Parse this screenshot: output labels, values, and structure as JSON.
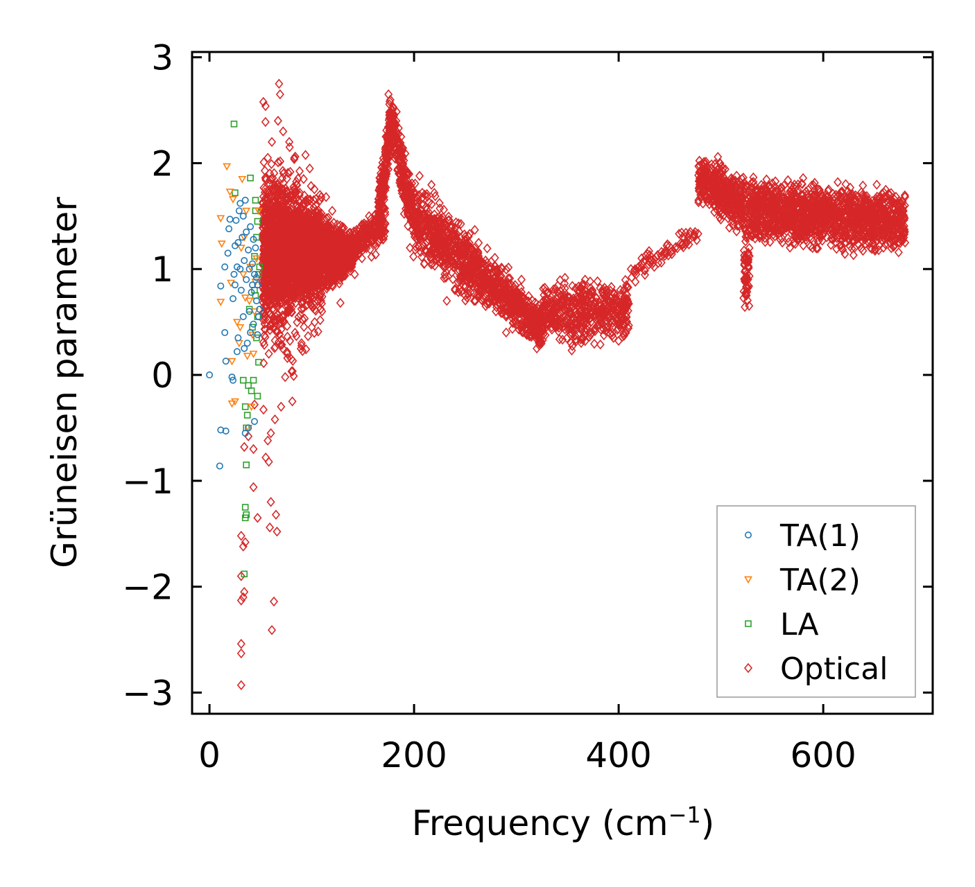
{
  "chart_data": {
    "type": "scatter",
    "title": "",
    "xlabel_main": "Frequency (cm",
    "xlabel_sup": "−1",
    "xlabel_close": ")",
    "ylabel": "Grüneisen parameter",
    "xlim": [
      -17,
      707
    ],
    "ylim": [
      -3.2,
      3.05
    ],
    "xticks": [
      0,
      200,
      400,
      600
    ],
    "xtick_labels": [
      "0",
      "200",
      "400",
      "600"
    ],
    "yticks": [
      -3,
      -2,
      -1,
      0,
      1,
      2,
      3
    ],
    "ytick_labels": [
      "−3",
      "−2",
      "−1",
      "0",
      "1",
      "2",
      "3"
    ],
    "legend_position": "lower-right",
    "series": [
      {
        "name": "TA(1)",
        "marker": "circle",
        "color": "#1f77b4",
        "points": [
          [
            0,
            0
          ],
          [
            10,
            -0.86
          ],
          [
            11,
            -0.52
          ],
          [
            16,
            -0.53
          ],
          [
            16,
            0.13
          ],
          [
            15,
            0.4
          ],
          [
            11,
            0.84
          ],
          [
            15,
            1.02
          ],
          [
            18,
            1.15
          ],
          [
            19,
            1.38
          ],
          [
            20,
            1.47
          ],
          [
            22,
            -0.02
          ],
          [
            23,
            0.72
          ],
          [
            24,
            0.95
          ],
          [
            25,
            1.22
          ],
          [
            26,
            1.46
          ],
          [
            27,
            1.02
          ],
          [
            27,
            0.22
          ],
          [
            28,
            0.35
          ],
          [
            29,
            1.55
          ],
          [
            30,
            1.62
          ],
          [
            31,
            0.8
          ],
          [
            32,
            1.3
          ],
          [
            33,
            0.55
          ],
          [
            34,
            1.08
          ],
          [
            35,
            1.65
          ],
          [
            36,
            0.9
          ],
          [
            37,
            0.3
          ],
          [
            38,
            1.18
          ],
          [
            39,
            0.6
          ],
          [
            40,
            1.4
          ],
          [
            41,
            0.78
          ],
          [
            42,
            1.05
          ],
          [
            43,
            0.48
          ],
          [
            44,
            0.95
          ],
          [
            45,
            1.2
          ],
          [
            46,
            0.7
          ],
          [
            47,
            0.85
          ],
          [
            48,
            0.55
          ],
          [
            49,
            0.62
          ],
          [
            44,
            -0.44
          ],
          [
            38,
            -0.5
          ],
          [
            35,
            -0.55
          ],
          [
            33,
            1.5
          ],
          [
            36,
            1.35
          ],
          [
            39,
            1.0
          ],
          [
            42,
            0.85
          ],
          [
            46,
            0.92
          ],
          [
            30,
            1.0
          ],
          [
            28,
            1.25
          ],
          [
            25,
            0.85
          ],
          [
            23,
            -0.05
          ],
          [
            34,
            0.25
          ],
          [
            40,
            0.4
          ],
          [
            43,
            1.28
          ],
          [
            47,
            0.38
          ]
        ]
      },
      {
        "name": "TA(2)",
        "marker": "triangle-down",
        "color": "#ff7f0e",
        "points": [
          [
            17,
            1.97
          ],
          [
            20,
            1.73
          ],
          [
            23,
            1.66
          ],
          [
            11,
            1.48
          ],
          [
            12,
            1.24
          ],
          [
            11,
            0.69
          ],
          [
            21,
            0.87
          ],
          [
            22,
            0.13
          ],
          [
            22,
            -0.27
          ],
          [
            25,
            -0.25
          ],
          [
            30,
            0.45
          ],
          [
            31,
            1.2
          ],
          [
            32,
            1.85
          ],
          [
            34,
            1.3
          ],
          [
            35,
            0.73
          ],
          [
            37,
            0.18
          ],
          [
            40,
            1.02
          ],
          [
            42,
            0.38
          ],
          [
            45,
            0.88
          ],
          [
            48,
            1.55
          ],
          [
            38,
            -0.5
          ],
          [
            41,
            -0.3
          ],
          [
            44,
            0.6
          ],
          [
            27,
            0.5
          ],
          [
            29,
            0.3
          ],
          [
            33,
            0.95
          ],
          [
            36,
            1.55
          ],
          [
            39,
            0.7
          ],
          [
            46,
            1.1
          ],
          [
            43,
            0.2
          ]
        ]
      },
      {
        "name": "LA",
        "marker": "square",
        "color": "#2ca02c",
        "points": [
          [
            24,
            2.37
          ],
          [
            40,
            1.86
          ],
          [
            25,
            1.72
          ],
          [
            45,
            1.65
          ],
          [
            47,
            1.45
          ],
          [
            46,
            1.3
          ],
          [
            44,
            1.12
          ],
          [
            48,
            0.95
          ],
          [
            45,
            0.75
          ],
          [
            47,
            0.55
          ],
          [
            46,
            0.35
          ],
          [
            48,
            0.12
          ],
          [
            43,
            -0.05
          ],
          [
            38,
            -0.1
          ],
          [
            33,
            -0.05
          ],
          [
            35,
            -0.3
          ],
          [
            37,
            -0.38
          ],
          [
            36,
            -0.5
          ],
          [
            36,
            -0.85
          ],
          [
            35,
            -1.25
          ],
          [
            36,
            -1.32
          ],
          [
            35,
            -1.35
          ],
          [
            34,
            -1.88
          ],
          [
            42,
            0.45
          ],
          [
            39,
            0.62
          ],
          [
            44,
            0.8
          ],
          [
            49,
            1.02
          ],
          [
            41,
            -0.15
          ],
          [
            47,
            -0.2
          ],
          [
            45,
            1.55
          ]
        ]
      },
      {
        "name": "Optical",
        "marker": "diamond",
        "color": "#d62728",
        "points": [
          [
            68,
            2.75
          ],
          [
            69,
            2.65
          ],
          [
            67,
            2.4
          ],
          [
            72,
            2.3
          ],
          [
            78,
            2.2
          ],
          [
            61,
            2.2
          ],
          [
            57,
            2.05
          ],
          [
            98,
            1.95
          ],
          [
            108,
            1.7
          ],
          [
            83,
            2.05
          ],
          [
            114,
            1.68
          ],
          [
            120,
            1.55
          ],
          [
            130,
            1.38
          ],
          [
            140,
            1.2
          ],
          [
            120,
            0.85
          ],
          [
            110,
            0.6
          ],
          [
            100,
            0.45
          ],
          [
            90,
            0.3
          ],
          [
            80,
            0.15
          ],
          [
            74,
            -0.02
          ],
          [
            70,
            -0.3
          ],
          [
            64,
            -0.42
          ],
          [
            60,
            -0.55
          ],
          [
            57,
            -0.62
          ],
          [
            55,
            -0.78
          ],
          [
            58,
            -0.82
          ],
          [
            44,
            -0.28
          ],
          [
            43,
            -0.7
          ],
          [
            38,
            -0.58
          ],
          [
            34,
            -0.68
          ],
          [
            43,
            -1.06
          ],
          [
            47,
            -1.35
          ],
          [
            60,
            -1.2
          ],
          [
            65,
            -1.32
          ],
          [
            59,
            -1.44
          ],
          [
            66,
            -1.48
          ],
          [
            31,
            -1.52
          ],
          [
            35,
            -1.58
          ],
          [
            33,
            -1.62
          ],
          [
            31,
            -1.9
          ],
          [
            34,
            -2.05
          ],
          [
            33,
            -2.1
          ],
          [
            31,
            -2.13
          ],
          [
            63,
            -2.14
          ],
          [
            31,
            -2.54
          ],
          [
            31,
            -2.63
          ],
          [
            61,
            -2.41
          ],
          [
            31,
            -2.93
          ],
          [
            81,
            -0.25
          ],
          [
            76,
            0.2
          ],
          [
            88,
            1.7
          ],
          [
            95,
            0.8
          ],
          [
            128,
            0.68
          ],
          [
            156,
            1.5
          ],
          [
            162,
            1.4
          ],
          [
            168,
            1.62
          ],
          [
            172,
            1.85
          ],
          [
            175,
            2.65
          ],
          [
            178,
            2.5
          ],
          [
            181,
            2.2
          ],
          [
            185,
            1.9
          ],
          [
            192,
            1.65
          ],
          [
            200,
            1.5
          ],
          [
            210,
            1.4
          ],
          [
            220,
            1.2
          ],
          [
            230,
            0.95
          ],
          [
            240,
            0.8
          ],
          [
            250,
            0.75
          ],
          [
            260,
            0.7
          ],
          [
            270,
            0.65
          ],
          [
            280,
            0.6
          ],
          [
            290,
            0.55
          ],
          [
            300,
            0.6
          ],
          [
            310,
            0.55
          ],
          [
            320,
            0.45
          ],
          [
            320,
            0.25
          ],
          [
            330,
            0.5
          ],
          [
            340,
            0.65
          ],
          [
            350,
            0.7
          ],
          [
            360,
            0.72
          ],
          [
            370,
            0.65
          ],
          [
            380,
            0.6
          ],
          [
            390,
            0.55
          ],
          [
            400,
            0.48
          ],
          [
            405,
            0.8
          ],
          [
            412,
            1.0
          ],
          [
            430,
            1.1
          ],
          [
            447,
            1.22
          ],
          [
            470,
            1.35
          ],
          [
            480,
            1.7
          ],
          [
            485,
            1.9
          ],
          [
            490,
            1.95
          ],
          [
            500,
            1.85
          ],
          [
            510,
            1.75
          ],
          [
            515,
            1.6
          ],
          [
            520,
            1.5
          ],
          [
            525,
            0.75
          ],
          [
            525,
            1.1
          ],
          [
            535,
            1.75
          ],
          [
            545,
            1.55
          ],
          [
            555,
            1.45
          ],
          [
            560,
            1.25
          ],
          [
            570,
            1.4
          ],
          [
            580,
            1.6
          ],
          [
            590,
            1.5
          ],
          [
            600,
            1.45
          ],
          [
            610,
            1.35
          ],
          [
            620,
            1.3
          ],
          [
            630,
            1.45
          ],
          [
            640,
            1.65
          ],
          [
            650,
            1.55
          ],
          [
            660,
            1.45
          ],
          [
            670,
            1.35
          ],
          [
            680,
            1.25
          ],
          [
            555,
            1.75
          ],
          [
            540,
            1.6
          ],
          [
            600,
            1.6
          ],
          [
            625,
            1.55
          ],
          [
            665,
            1.7
          ],
          [
            290,
            0.4
          ],
          [
            305,
            0.9
          ],
          [
            250,
            1.15
          ],
          [
            232,
            0.7
          ],
          [
            208,
            1.72
          ],
          [
            196,
            1.2
          ],
          [
            142,
            0.95
          ],
          [
            130,
            1.4
          ],
          [
            104,
            1.6
          ],
          [
            92,
            1.85
          ],
          [
            58,
            0.2
          ],
          [
            54,
            0.55
          ]
        ],
        "dense_regions": [
          {
            "label": "low-frequency cloud",
            "x": [
              52,
              140
            ],
            "y_center": [
              1.15,
              1.15
            ],
            "y_halfwidth": [
              0.55,
              0.12
            ],
            "n": 2600
          },
          {
            "label": "low-frequency spread",
            "x": [
              52,
              110
            ],
            "y_center": [
              1.1,
              1.1
            ],
            "y_halfwidth": [
              0.95,
              0.5
            ],
            "n": 500
          },
          {
            "label": "ramp",
            "x": [
              140,
              172
            ],
            "y_center": [
              1.2,
              1.45
            ],
            "y_halfwidth": [
              0.12,
              0.15
            ],
            "n": 200
          },
          {
            "label": "peak rise",
            "x": [
              165,
              178
            ],
            "y_center": [
              1.5,
              2.4
            ],
            "y_halfwidth": [
              0.18,
              0.22
            ],
            "n": 200
          },
          {
            "label": "peak decay",
            "x": [
              178,
              198
            ],
            "y_center": [
              2.4,
              1.55
            ],
            "y_halfwidth": [
              0.22,
              0.25
            ],
            "n": 220
          },
          {
            "label": "descending band",
            "x": [
              198,
              325
            ],
            "y_center": [
              1.5,
              0.45
            ],
            "y_halfwidth": [
              0.28,
              0.15
            ],
            "n": 1000
          },
          {
            "label": "valley",
            "x": [
              325,
              410
            ],
            "y_center": [
              0.6,
              0.6
            ],
            "y_halfwidth": [
              0.22,
              0.22
            ],
            "n": 500
          },
          {
            "label": "rise",
            "x": [
              410,
              478
            ],
            "y_center": [
              0.95,
              1.35
            ],
            "y_halfwidth": [
              0.08,
              0.06
            ],
            "n": 70
          },
          {
            "label": "high plateau",
            "x": [
              478,
              525
            ],
            "y_center": [
              1.85,
              1.6
            ],
            "y_halfwidth": [
              0.18,
              0.22
            ],
            "n": 400
          },
          {
            "label": "dip",
            "x": [
              522,
              528
            ],
            "y_center": [
              1.0,
              1.0
            ],
            "y_halfwidth": [
              0.3,
              0.3
            ],
            "n": 60
          },
          {
            "label": "top band",
            "x": [
              528,
              680
            ],
            "y_center": [
              1.55,
              1.45
            ],
            "y_halfwidth": [
              0.22,
              0.22
            ],
            "n": 1400
          }
        ]
      }
    ]
  }
}
